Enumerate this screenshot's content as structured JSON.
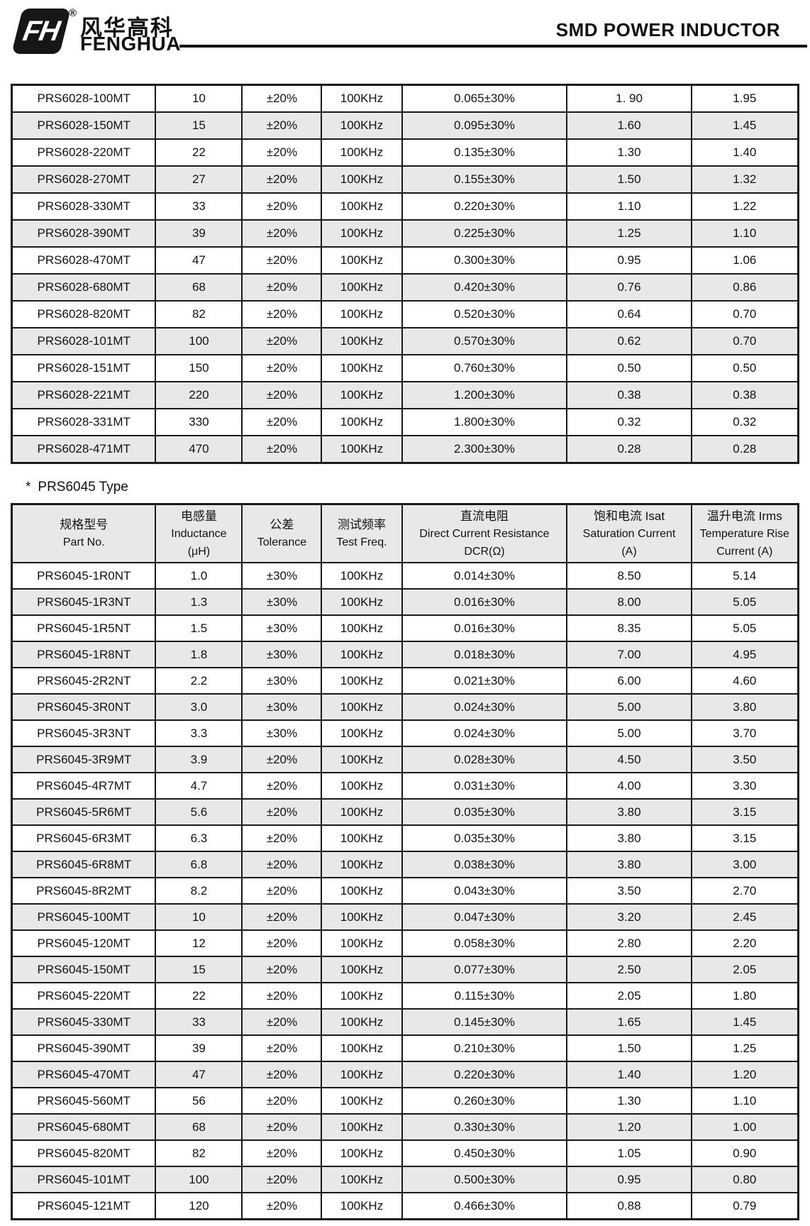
{
  "header": {
    "logo": {
      "monogram": "FH",
      "reg_mark": "®",
      "zh": "风华高科",
      "en": "FENGHUA"
    },
    "title": "SMD POWER INDUCTOR"
  },
  "colors": {
    "row_alt": "#e8e8e8",
    "border": "#1a1a1a",
    "text": "#111111"
  },
  "table1": {
    "rows": [
      [
        "PRS6028-100MT",
        "10",
        "±20%",
        "100KHz",
        "0.065±30%",
        "1. 90",
        "1.95"
      ],
      [
        "PRS6028-150MT",
        "15",
        "±20%",
        "100KHz",
        "0.095±30%",
        "1.60",
        "1.45"
      ],
      [
        "PRS6028-220MT",
        "22",
        "±20%",
        "100KHz",
        "0.135±30%",
        "1.30",
        "1.40"
      ],
      [
        "PRS6028-270MT",
        "27",
        "±20%",
        "100KHz",
        "0.155±30%",
        "1.50",
        "1.32"
      ],
      [
        "PRS6028-330MT",
        "33",
        "±20%",
        "100KHz",
        "0.220±30%",
        "1.10",
        "1.22"
      ],
      [
        "PRS6028-390MT",
        "39",
        "±20%",
        "100KHz",
        "0.225±30%",
        "1.25",
        "1.10"
      ],
      [
        "PRS6028-470MT",
        "47",
        "±20%",
        "100KHz",
        "0.300±30%",
        "0.95",
        "1.06"
      ],
      [
        "PRS6028-680MT",
        "68",
        "±20%",
        "100KHz",
        "0.420±30%",
        "0.76",
        "0.86"
      ],
      [
        "PRS6028-820MT",
        "82",
        "±20%",
        "100KHz",
        "0.520±30%",
        "0.64",
        "0.70"
      ],
      [
        "PRS6028-101MT",
        "100",
        "±20%",
        "100KHz",
        "0.570±30%",
        "0.62",
        "0.70"
      ],
      [
        "PRS6028-151MT",
        "150",
        "±20%",
        "100KHz",
        "0.760±30%",
        "0.50",
        "0.50"
      ],
      [
        "PRS6028-221MT",
        "220",
        "±20%",
        "100KHz",
        "1.200±30%",
        "0.38",
        "0.38"
      ],
      [
        "PRS6028-331MT",
        "330",
        "±20%",
        "100KHz",
        "1.800±30%",
        "0.32",
        "0.32"
      ],
      [
        "PRS6028-471MT",
        "470",
        "±20%",
        "100KHz",
        "2.300±30%",
        "0.28",
        "0.28"
      ]
    ]
  },
  "section2": {
    "bullet": "*",
    "title": "PRS6045 Type"
  },
  "table2": {
    "header": {
      "part_no": {
        "zh": "规格型号",
        "en": "Part No."
      },
      "inductance": {
        "zh": "电感量",
        "en": "Inductance",
        "unit": "(μH)"
      },
      "tolerance": {
        "zh": "公差",
        "en": "Tolerance"
      },
      "test_freq": {
        "zh": "测试频率",
        "en": "Test Freq."
      },
      "dcr": {
        "zh": "直流电阻",
        "en": "Direct Current Resistance",
        "unit": "DCR(Ω)"
      },
      "isat": {
        "zh": "饱和电流  Isat",
        "en": "Saturation Current",
        "unit": "(A)"
      },
      "irms": {
        "zh": "温升电流  Irms",
        "en": "Temperature Rise",
        "unit": "Current (A)"
      }
    },
    "rows": [
      [
        "PRS6045-1R0NT",
        "1.0",
        "±30%",
        "100KHz",
        "0.014±30%",
        "8.50",
        "5.14"
      ],
      [
        "PRS6045-1R3NT",
        "1.3",
        "±30%",
        "100KHz",
        "0.016±30%",
        "8.00",
        "5.05"
      ],
      [
        "PRS6045-1R5NT",
        "1.5",
        "±30%",
        "100KHz",
        "0.016±30%",
        "8.35",
        "5.05"
      ],
      [
        "PRS6045-1R8NT",
        "1.8",
        "±30%",
        "100KHz",
        "0.018±30%",
        "7.00",
        "4.95"
      ],
      [
        "PRS6045-2R2NT",
        "2.2",
        "±30%",
        "100KHz",
        "0.021±30%",
        "6.00",
        "4.60"
      ],
      [
        "PRS6045-3R0NT",
        "3.0",
        "±30%",
        "100KHz",
        "0.024±30%",
        "5.00",
        "3.80"
      ],
      [
        "PRS6045-3R3NT",
        "3.3",
        "±30%",
        "100KHz",
        "0.024±30%",
        "5.00",
        "3.70"
      ],
      [
        "PRS6045-3R9MT",
        "3.9",
        "±20%",
        "100KHz",
        "0.028±30%",
        "4.50",
        "3.50"
      ],
      [
        "PRS6045-4R7MT",
        "4.7",
        "±20%",
        "100KHz",
        "0.031±30%",
        "4.00",
        "3.30"
      ],
      [
        "PRS6045-5R6MT",
        "5.6",
        "±20%",
        "100KHz",
        "0.035±30%",
        "3.80",
        "3.15"
      ],
      [
        "PRS6045-6R3MT",
        "6.3",
        "±20%",
        "100KHz",
        "0.035±30%",
        "3.80",
        "3.15"
      ],
      [
        "PRS6045-6R8MT",
        "6.8",
        "±20%",
        "100KHz",
        "0.038±30%",
        "3.80",
        "3.00"
      ],
      [
        "PRS6045-8R2MT",
        "8.2",
        "±20%",
        "100KHz",
        "0.043±30%",
        "3.50",
        "2.70"
      ],
      [
        "PRS6045-100MT",
        "10",
        "±20%",
        "100KHz",
        "0.047±30%",
        "3.20",
        "2.45"
      ],
      [
        "PRS6045-120MT",
        "12",
        "±20%",
        "100KHz",
        "0.058±30%",
        "2.80",
        "2.20"
      ],
      [
        "PRS6045-150MT",
        "15",
        "±20%",
        "100KHz",
        "0.077±30%",
        "2.50",
        "2.05"
      ],
      [
        "PRS6045-220MT",
        "22",
        "±20%",
        "100KHz",
        "0.115±30%",
        "2.05",
        "1.80"
      ],
      [
        "PRS6045-330MT",
        "33",
        "±20%",
        "100KHz",
        "0.145±30%",
        "1.65",
        "1.45"
      ],
      [
        "PRS6045-390MT",
        "39",
        "±20%",
        "100KHz",
        "0.210±30%",
        "1.50",
        "1.25"
      ],
      [
        "PRS6045-470MT",
        "47",
        "±20%",
        "100KHz",
        "0.220±30%",
        "1.40",
        "1.20"
      ],
      [
        "PRS6045-560MT",
        "56",
        "±20%",
        "100KHz",
        "0.260±30%",
        "1.30",
        "1.10"
      ],
      [
        "PRS6045-680MT",
        "68",
        "±20%",
        "100KHz",
        "0.330±30%",
        "1.20",
        "1.00"
      ],
      [
        "PRS6045-820MT",
        "82",
        "±20%",
        "100KHz",
        "0.450±30%",
        "1.05",
        "0.90"
      ],
      [
        "PRS6045-101MT",
        "100",
        "±20%",
        "100KHz",
        "0.500±30%",
        "0.95",
        "0.80"
      ],
      [
        "PRS6045-121MT",
        "120",
        "±20%",
        "100KHz",
        "0.466±30%",
        "0.88",
        "0.79"
      ]
    ]
  }
}
